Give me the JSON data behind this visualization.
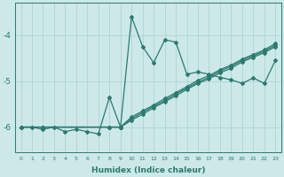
{
  "xlabel": "Humidex (Indice chaleur)",
  "background_color": "#cde8e8",
  "line_color": "#2a7a70",
  "grid_color": "#aacfcf",
  "xlim": [
    -0.5,
    23.5
  ],
  "ylim": [
    -6.55,
    -3.3
  ],
  "yticks": [
    -6,
    -5,
    -4
  ],
  "xticks": [
    0,
    1,
    2,
    3,
    4,
    5,
    6,
    7,
    8,
    9,
    10,
    11,
    12,
    13,
    14,
    15,
    16,
    17,
    18,
    19,
    20,
    21,
    22,
    23
  ],
  "line1_x": [
    0,
    1,
    2,
    3,
    4,
    5,
    6,
    7,
    8,
    9,
    10,
    11,
    12,
    13,
    14,
    15,
    16,
    17,
    18,
    19,
    20,
    21,
    22,
    23
  ],
  "line1_y": [
    -6.0,
    -6.0,
    -6.05,
    -6.0,
    -6.1,
    -6.05,
    -6.1,
    -6.15,
    -5.35,
    -6.0,
    -3.6,
    -4.25,
    -4.6,
    -4.1,
    -4.15,
    -4.85,
    -4.8,
    -4.85,
    -4.92,
    -4.97,
    -5.05,
    -4.93,
    -5.05,
    -4.55
  ],
  "line2_x": [
    0,
    2,
    8,
    9,
    10,
    11,
    12,
    13,
    14,
    15,
    16,
    17,
    18,
    19,
    20,
    21,
    22,
    23
  ],
  "line2_y": [
    -6.0,
    -6.0,
    -6.0,
    -6.0,
    -5.78,
    -5.65,
    -5.52,
    -5.38,
    -5.25,
    -5.12,
    -4.98,
    -4.88,
    -4.75,
    -4.65,
    -4.52,
    -4.42,
    -4.32,
    -4.18
  ],
  "line3_x": [
    0,
    2,
    8,
    9,
    10,
    11,
    12,
    13,
    14,
    15,
    16,
    17,
    18,
    19,
    20,
    21,
    22,
    23
  ],
  "line3_y": [
    -6.0,
    -6.0,
    -6.0,
    -6.0,
    -5.82,
    -5.68,
    -5.55,
    -5.42,
    -5.28,
    -5.15,
    -5.02,
    -4.92,
    -4.78,
    -4.68,
    -4.55,
    -4.45,
    -4.35,
    -4.22
  ],
  "line4_x": [
    0,
    2,
    8,
    9,
    10,
    11,
    12,
    13,
    14,
    15,
    16,
    17,
    18,
    19,
    20,
    21,
    22,
    23
  ],
  "line4_y": [
    -6.0,
    -6.0,
    -6.0,
    -6.0,
    -5.85,
    -5.72,
    -5.58,
    -5.45,
    -5.32,
    -5.18,
    -5.05,
    -4.95,
    -4.82,
    -4.72,
    -4.58,
    -4.48,
    -4.38,
    -4.25
  ]
}
